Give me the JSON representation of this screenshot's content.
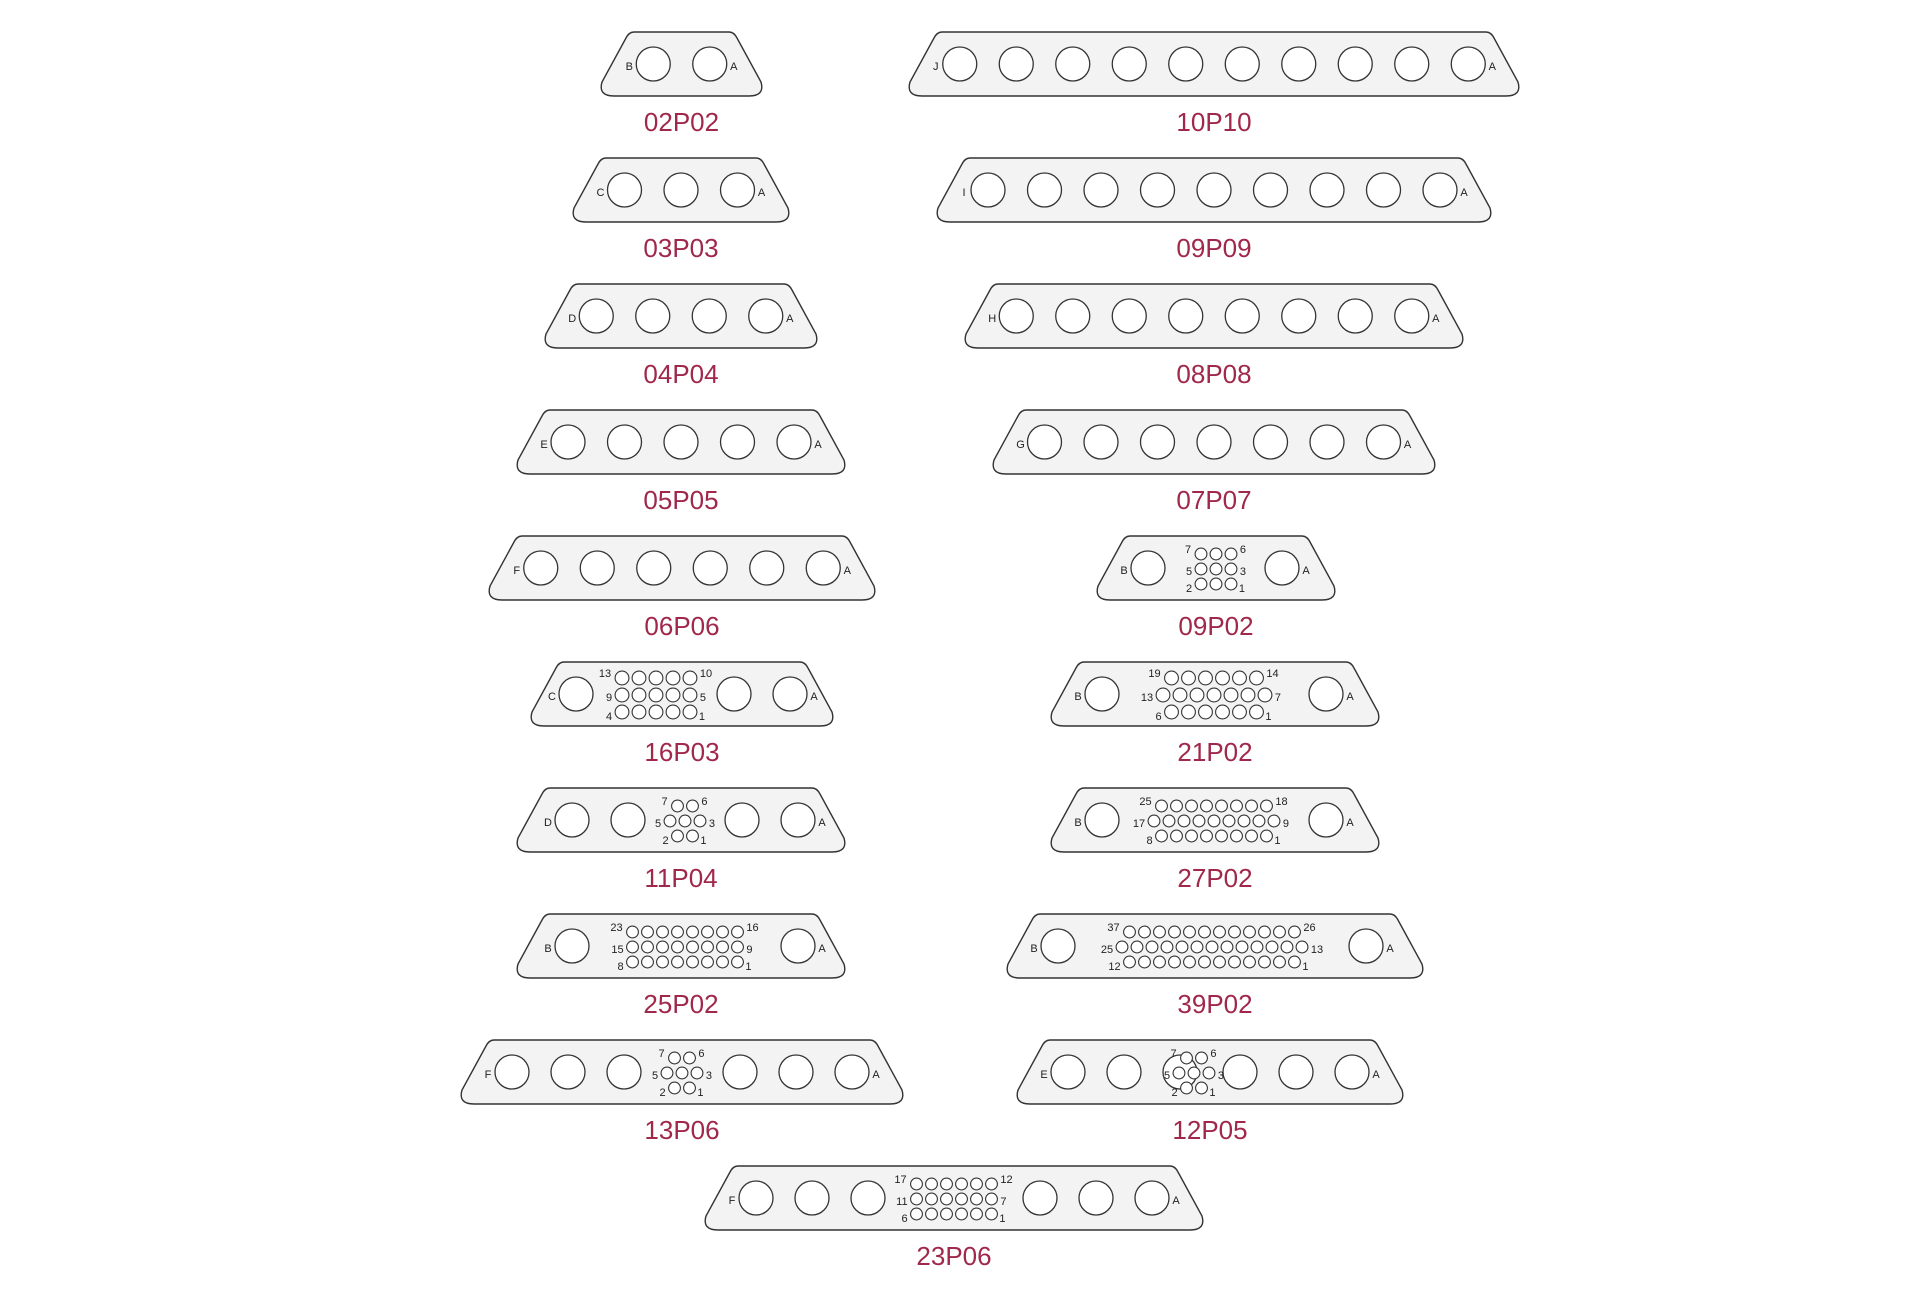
{
  "colors": {
    "label": "#a0284a",
    "shell_fill": "#f3f3f3",
    "shell_stroke": "#333333",
    "pin_stroke": "#333333",
    "pin_fill": "#ffffff",
    "text": "#222222"
  },
  "connectors": [
    {
      "id": "02P02",
      "label": "02P02",
      "large": [
        {
          "label": "B"
        },
        {
          "pin": true
        },
        {
          "pin": true
        },
        {
          "label": "A"
        }
      ]
    },
    {
      "id": "10P10",
      "label": "10P10",
      "large": [
        {
          "label": "J"
        },
        {
          "pin": true
        },
        {
          "pin": true
        },
        {
          "pin": true
        },
        {
          "pin": true
        },
        {
          "pin": true
        },
        {
          "pin": true
        },
        {
          "pin": true
        },
        {
          "pin": true
        },
        {
          "pin": true
        },
        {
          "pin": true
        },
        {
          "label": "A"
        }
      ]
    },
    {
      "id": "03P03",
      "label": "03P03",
      "large": [
        {
          "label": "C"
        },
        {
          "pin": true
        },
        {
          "pin": true
        },
        {
          "pin": true
        },
        {
          "label": "A"
        }
      ]
    },
    {
      "id": "09P09",
      "label": "09P09",
      "large": [
        {
          "label": "I"
        },
        {
          "pin": true
        },
        {
          "pin": true
        },
        {
          "pin": true
        },
        {
          "pin": true
        },
        {
          "pin": true
        },
        {
          "pin": true
        },
        {
          "pin": true
        },
        {
          "pin": true
        },
        {
          "pin": true
        },
        {
          "label": "A"
        }
      ]
    },
    {
      "id": "04P04",
      "label": "04P04",
      "large": [
        {
          "label": "D"
        },
        {
          "pin": true
        },
        {
          "pin": true
        },
        {
          "pin": true
        },
        {
          "pin": true
        },
        {
          "label": "A"
        }
      ]
    },
    {
      "id": "08P08",
      "label": "08P08",
      "large": [
        {
          "label": "H"
        },
        {
          "pin": true
        },
        {
          "pin": true
        },
        {
          "pin": true
        },
        {
          "pin": true
        },
        {
          "pin": true
        },
        {
          "pin": true
        },
        {
          "pin": true
        },
        {
          "pin": true
        },
        {
          "label": "A"
        }
      ]
    },
    {
      "id": "05P05",
      "label": "05P05",
      "large": [
        {
          "label": "E"
        },
        {
          "pin": true
        },
        {
          "pin": true
        },
        {
          "pin": true
        },
        {
          "pin": true
        },
        {
          "pin": true
        },
        {
          "label": "A"
        }
      ]
    },
    {
      "id": "07P07",
      "label": "07P07",
      "large": [
        {
          "label": "G"
        },
        {
          "pin": true
        },
        {
          "pin": true
        },
        {
          "pin": true
        },
        {
          "pin": true
        },
        {
          "pin": true
        },
        {
          "pin": true
        },
        {
          "pin": true
        },
        {
          "label": "A"
        }
      ]
    },
    {
      "id": "06P06",
      "label": "06P06",
      "large": [
        {
          "label": "F"
        },
        {
          "pin": true
        },
        {
          "pin": true
        },
        {
          "pin": true
        },
        {
          "pin": true
        },
        {
          "pin": true
        },
        {
          "pin": true
        },
        {
          "label": "A"
        }
      ]
    },
    {
      "id": "09P02",
      "label": "09P02",
      "small": {
        "rows": [
          3,
          3,
          3
        ],
        "labels": [
          "7",
          "6",
          "5",
          "3",
          "2",
          "1"
        ]
      }
    },
    {
      "id": "16P03",
      "label": "16P03",
      "small": {
        "rows": [
          5,
          5,
          5
        ],
        "labels": [
          "13",
          "10",
          "9",
          "5",
          "4",
          "1"
        ]
      }
    },
    {
      "id": "21P02",
      "label": "21P02",
      "small": {
        "rows": [
          6,
          7,
          6
        ],
        "labels": [
          "19",
          "14",
          "13",
          "7",
          "6",
          "1"
        ]
      }
    },
    {
      "id": "11P04",
      "label": "11P04",
      "small": {
        "rows": [
          2,
          3,
          2
        ],
        "labels": [
          "7",
          "6",
          "5",
          "3",
          "2",
          "1"
        ]
      }
    },
    {
      "id": "27P02",
      "label": "27P02",
      "small": {
        "rows": [
          8,
          9,
          8
        ],
        "labels": [
          "25",
          "18",
          "17",
          "9",
          "8",
          "1"
        ]
      }
    },
    {
      "id": "25P02",
      "label": "25P02",
      "small": {
        "rows": [
          8,
          8,
          8
        ],
        "labels": [
          "23",
          "16",
          "15",
          "9",
          "8",
          "1"
        ]
      }
    },
    {
      "id": "39P02",
      "label": "39P02",
      "small": {
        "rows": [
          12,
          13,
          12
        ],
        "labels": [
          "37",
          "26",
          "25",
          "13",
          "12",
          "1"
        ]
      }
    },
    {
      "id": "13P06",
      "label": "13P06",
      "small": {
        "rows": [
          2,
          3,
          2
        ],
        "labels": [
          "7",
          "6",
          "5",
          "3",
          "2",
          "1"
        ]
      }
    },
    {
      "id": "12P05",
      "label": "12P05",
      "small": {
        "rows": [
          2,
          3,
          2
        ],
        "labels": [
          "7",
          "6",
          "5",
          "3",
          "2",
          "1"
        ]
      }
    },
    {
      "id": "23P06",
      "label": "23P06",
      "small": {
        "rows": [
          6,
          6,
          6
        ],
        "labels": [
          "17",
          "12",
          "11",
          "7",
          "6",
          "1"
        ]
      }
    }
  ]
}
